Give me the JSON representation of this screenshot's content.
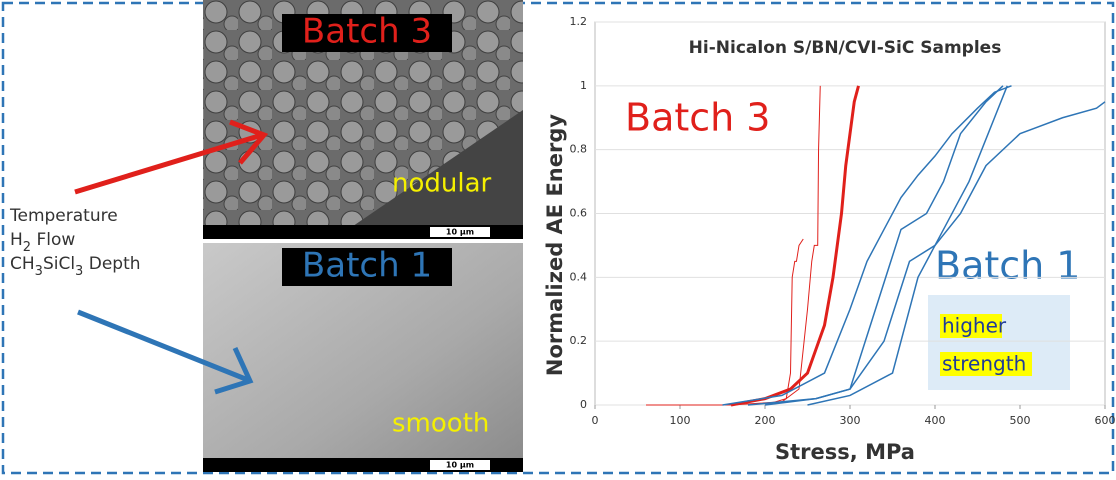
{
  "slide": {
    "process_params": [
      [
        "Temperature"
      ],
      [
        "H",
        "2",
        " Flow"
      ],
      [
        "CH",
        "3",
        "SiCl",
        "3",
        " Depth"
      ]
    ],
    "images": [
      {
        "label": "Batch 3",
        "texture": "nodular",
        "scale": "10 µm"
      },
      {
        "label": "Batch 1",
        "texture": "smooth",
        "scale": "10 µm"
      }
    ]
  },
  "chart_data": {
    "type": "line",
    "title": "Hi-Nicalon S/BN/CVI-SiC Samples",
    "x_label": "Stress, MPa",
    "y_label": "Normalized AE Energy",
    "xlim": [
      0,
      600
    ],
    "ylim": [
      0,
      1.2
    ],
    "xticks": [
      0,
      100,
      200,
      300,
      400,
      500,
      600
    ],
    "yticks": [
      0,
      0.2,
      0.4,
      0.6,
      0.8,
      1,
      1.2
    ],
    "annotations": [
      "Batch 3",
      "Batch 1",
      "higher",
      "strength"
    ],
    "series": [
      {
        "color": "#e0201b",
        "width": 1,
        "x": [
          60,
          95,
          160,
          220,
          240,
          250,
          255,
          258,
          262,
          263,
          265
        ],
        "values": [
          0,
          0,
          0,
          0.01,
          0.05,
          0.3,
          0.45,
          0.5,
          0.5,
          0.8,
          1.0
        ]
      },
      {
        "color": "#e0201b",
        "width": 1,
        "x": [
          200,
          225,
          230,
          232,
          235,
          237,
          240,
          245
        ],
        "values": [
          0,
          0.02,
          0.1,
          0.4,
          0.45,
          0.45,
          0.5,
          0.52
        ]
      },
      {
        "color": "#e0201b",
        "width": 3,
        "x": [
          160,
          200,
          230,
          250,
          270,
          280,
          290,
          295,
          300,
          305,
          310
        ],
        "values": [
          0,
          0.02,
          0.05,
          0.1,
          0.25,
          0.4,
          0.6,
          0.75,
          0.85,
          0.95,
          1.0
        ]
      },
      {
        "color": "#2e75b6",
        "width": 1.5,
        "x": [
          150,
          220,
          270,
          300,
          320,
          340,
          360,
          380,
          400,
          420,
          450,
          470,
          490
        ],
        "values": [
          0,
          0.03,
          0.1,
          0.3,
          0.45,
          0.55,
          0.65,
          0.72,
          0.78,
          0.85,
          0.93,
          0.98,
          1.0
        ]
      },
      {
        "color": "#2e75b6",
        "width": 1.5,
        "x": [
          200,
          260,
          300,
          330,
          360,
          390,
          410,
          430,
          460,
          480
        ],
        "values": [
          0,
          0.02,
          0.05,
          0.3,
          0.55,
          0.6,
          0.7,
          0.85,
          0.95,
          1.0
        ]
      },
      {
        "color": "#2e75b6",
        "width": 1.5,
        "x": [
          180,
          260,
          300,
          340,
          370,
          400,
          430,
          460,
          500,
          550,
          590,
          600
        ],
        "values": [
          0,
          0.02,
          0.05,
          0.2,
          0.45,
          0.5,
          0.6,
          0.75,
          0.85,
          0.9,
          0.93,
          0.95
        ]
      },
      {
        "color": "#2e75b6",
        "width": 1.5,
        "x": [
          250,
          300,
          350,
          380,
          410,
          440,
          470,
          485
        ],
        "values": [
          0,
          0.03,
          0.1,
          0.4,
          0.55,
          0.7,
          0.9,
          1.0
        ]
      }
    ]
  }
}
